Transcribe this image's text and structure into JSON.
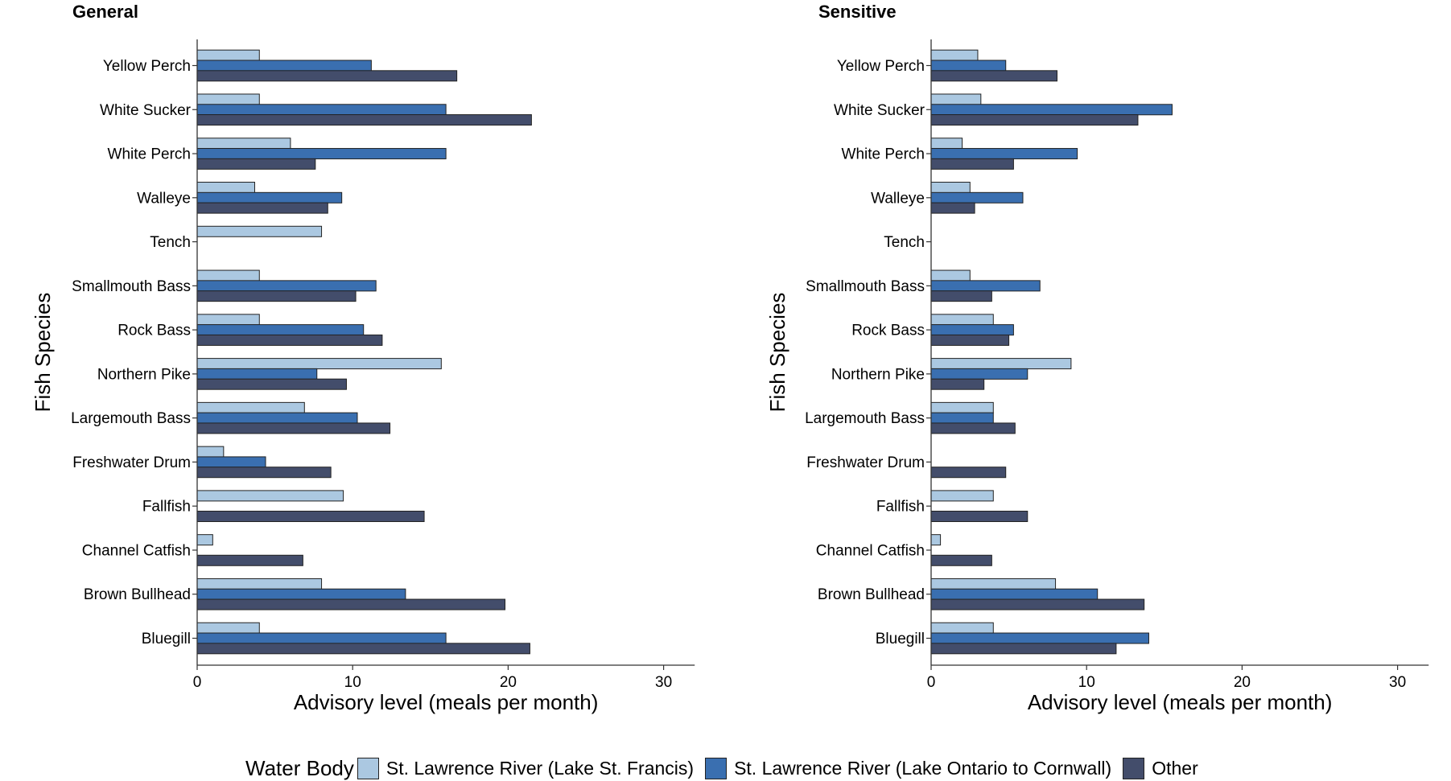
{
  "chart_data": {
    "type": "bar",
    "orientation": "horizontal",
    "legend": {
      "title": "Water Body",
      "position": "bottom",
      "entries": [
        {
          "name": "St. Lawrence River (Lake St. Francis)",
          "color": "#abc8e1"
        },
        {
          "name": "St. Lawrence River (Lake Ontario to Cornwall)",
          "color": "#3a6fb0"
        },
        {
          "name": "Other",
          "color": "#434d6b"
        }
      ]
    },
    "panels": [
      {
        "title": "General",
        "xlabel": "Advisory level (meals per month)",
        "ylabel": "Fish Species",
        "xlim": [
          0,
          32
        ],
        "xticks": [
          0,
          10,
          20,
          30
        ],
        "grid": false,
        "categories": [
          "Yellow Perch",
          "White Sucker",
          "White Perch",
          "Walleye",
          "Tench",
          "Smallmouth Bass",
          "Rock Bass",
          "Northern Pike",
          "Largemouth Bass",
          "Freshwater Drum",
          "Fallfish",
          "Channel Catfish",
          "Brown Bullhead",
          "Bluegill"
        ],
        "series": [
          {
            "name": "St. Lawrence River (Lake St. Francis)",
            "values": [
              4,
              4,
              6,
              3.7,
              8,
              4,
              4,
              15.7,
              6.9,
              1.7,
              9.4,
              1,
              8,
              4
            ]
          },
          {
            "name": "St. Lawrence River (Lake Ontario to Cornwall)",
            "values": [
              11.2,
              16,
              16,
              9.3,
              null,
              11.5,
              10.7,
              7.7,
              10.3,
              4.4,
              null,
              null,
              13.4,
              16
            ]
          },
          {
            "name": "Other",
            "values": [
              16.7,
              21.5,
              7.6,
              8.4,
              null,
              10.2,
              11.9,
              9.6,
              12.4,
              8.6,
              14.6,
              6.8,
              19.8,
              21.4
            ]
          }
        ]
      },
      {
        "title": "Sensitive",
        "xlabel": "Advisory level (meals per month)",
        "ylabel": "Fish Species",
        "xlim": [
          0,
          32
        ],
        "xticks": [
          0,
          10,
          20,
          30
        ],
        "grid": false,
        "categories": [
          "Yellow Perch",
          "White Sucker",
          "White Perch",
          "Walleye",
          "Tench",
          "Smallmouth Bass",
          "Rock Bass",
          "Northern Pike",
          "Largemouth Bass",
          "Freshwater Drum",
          "Fallfish",
          "Channel Catfish",
          "Brown Bullhead",
          "Bluegill"
        ],
        "series": [
          {
            "name": "St. Lawrence River (Lake St. Francis)",
            "values": [
              3,
              3.2,
              2,
              2.5,
              null,
              2.5,
              4,
              9,
              4,
              null,
              4,
              0.6,
              8,
              4
            ]
          },
          {
            "name": "St. Lawrence River (Lake Ontario to Cornwall)",
            "values": [
              4.8,
              15.5,
              9.4,
              5.9,
              null,
              7,
              5.3,
              6.2,
              4,
              null,
              null,
              null,
              10.7,
              14
            ]
          },
          {
            "name": "Other",
            "values": [
              8.1,
              13.3,
              5.3,
              2.8,
              null,
              3.9,
              5,
              3.4,
              5.4,
              4.8,
              6.2,
              3.9,
              13.7,
              11.9
            ]
          }
        ]
      }
    ]
  }
}
